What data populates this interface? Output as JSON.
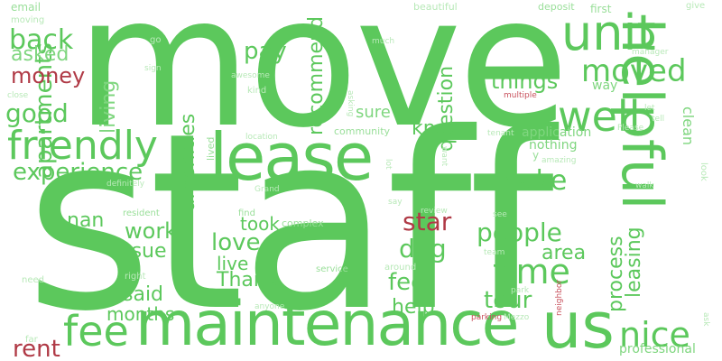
{
  "cloud": {
    "words": {
      "staff": "staff",
      "move": "move",
      "maintenance": "maintenance",
      "lease": "lease",
      "helpful": "helpful",
      "unit": "unit",
      "us": "us",
      "friendly": "friendly",
      "fee": "fee",
      "well": "well",
      "moved": "moved",
      "time": "time",
      "nice": "nice",
      "experience": "experience",
      "back": "back",
      "make": "make",
      "good": "good",
      "apartments": "apartments",
      "people": "people",
      "love": "love",
      "dog": "dog",
      "work": "work",
      "tour": "tour",
      "feel": "feel",
      "rent": "rent",
      "star": "star",
      "pay": "pay",
      "things": "things",
      "money": "money",
      "asked": "asked",
      "amenities": "amenities",
      "recommend": "recommend",
      "question": "question",
      "living": "living",
      "know": "know",
      "process": "process",
      "leasing": "leasing",
      "area": "area",
      "help": "help",
      "took": "took",
      "Thank": "Thank",
      "live": "live",
      "issue": "issue",
      "said": "said",
      "months": "months",
      "nan": "nan",
      "sure": "sure",
      "application": "application",
      "clean": "clean",
      "professional": "professional",
      "way": "way",
      "nothing": "nothing",
      "email": "email",
      "moving": "moving",
      "beautiful": "beautiful",
      "deposit": "deposit",
      "first": "first",
      "give": "give",
      "go": "go",
      "sign": "sign",
      "close": "close",
      "awesome": "awesome",
      "kind": "kind",
      "much": "much",
      "manager": "manager",
      "multiple": "multiple",
      "let": "let",
      "tell": "tell",
      "Please": "Please",
      "asking": "asking",
      "location": "location",
      "community": "community",
      "lived": "lived",
      "lot": "lot",
      "tenant": "tenant",
      "want": "want",
      "amazing": "amazing",
      "y": "y",
      "definitely": "definitely",
      "Grand": "Grand",
      "walk": "walk",
      "look": "look",
      "resident": "resident",
      "find": "find",
      "complex": "complex",
      "review": "review",
      "say": "say",
      "see": "see",
      "team": "team",
      "right": "right",
      "need": "need",
      "service": "service",
      "around": "around",
      "park": "park",
      "anyone": "anyone",
      "parking": "parking",
      "Mezzo": "Mezzo",
      "neighbor": "neighbor",
      "ask": "ask",
      "far": "far"
    }
  }
}
